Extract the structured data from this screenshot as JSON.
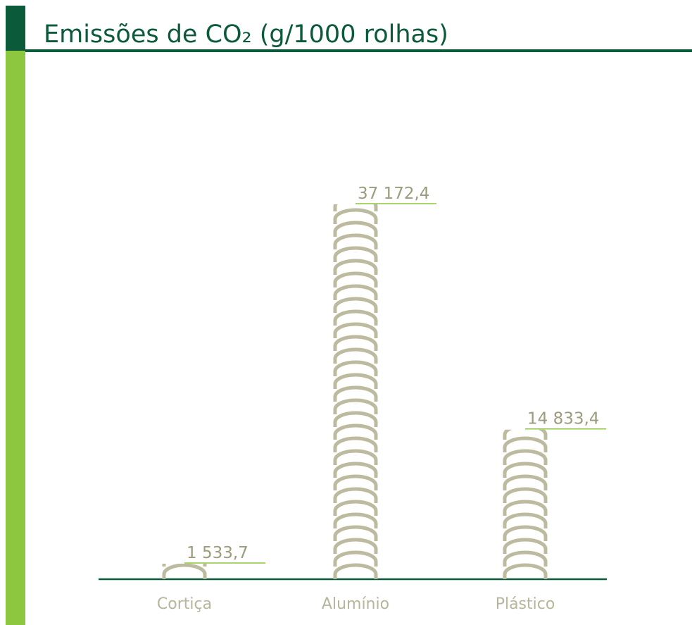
{
  "chart_data": {
    "type": "pictograph",
    "title": "Emissões de CO₂ (g/1000 rolhas)",
    "categories": [
      "Cortiça",
      "Alumínio",
      "Plástico"
    ],
    "values": [
      1533.7,
      37172.4,
      14833.4
    ],
    "value_labels": [
      "1 533,7",
      "37 172,4",
      "14 833,4"
    ],
    "color": "#bdbb9f"
  }
}
